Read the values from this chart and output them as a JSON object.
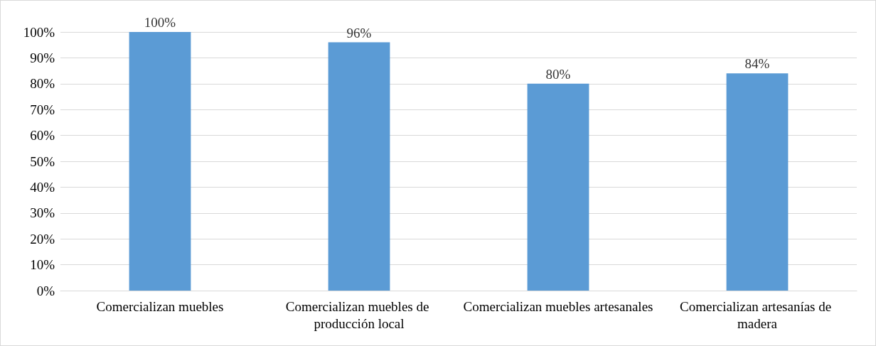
{
  "chart_data": {
    "type": "bar",
    "categories": [
      "Comercializan muebles",
      "Comercializan muebles de producción local",
      "Comercializan muebles artesanales",
      "Comercializan artesanías de madera"
    ],
    "values": [
      100,
      96,
      80,
      84
    ],
    "value_labels": [
      "100%",
      "96%",
      "80%",
      "84%"
    ],
    "color": "#5b9bd5",
    "ylim": [
      0,
      100
    ],
    "yticks": [
      {
        "value": 0,
        "label": "0%"
      },
      {
        "value": 10,
        "label": "10%"
      },
      {
        "value": 20,
        "label": "20%"
      },
      {
        "value": 30,
        "label": "30%"
      },
      {
        "value": 40,
        "label": "40%"
      },
      {
        "value": 50,
        "label": "50%"
      },
      {
        "value": 60,
        "label": "60%"
      },
      {
        "value": 70,
        "label": "70%"
      },
      {
        "value": 80,
        "label": "80%"
      },
      {
        "value": 90,
        "label": "90%"
      },
      {
        "value": 100,
        "label": "100%"
      }
    ],
    "grid": "y"
  }
}
